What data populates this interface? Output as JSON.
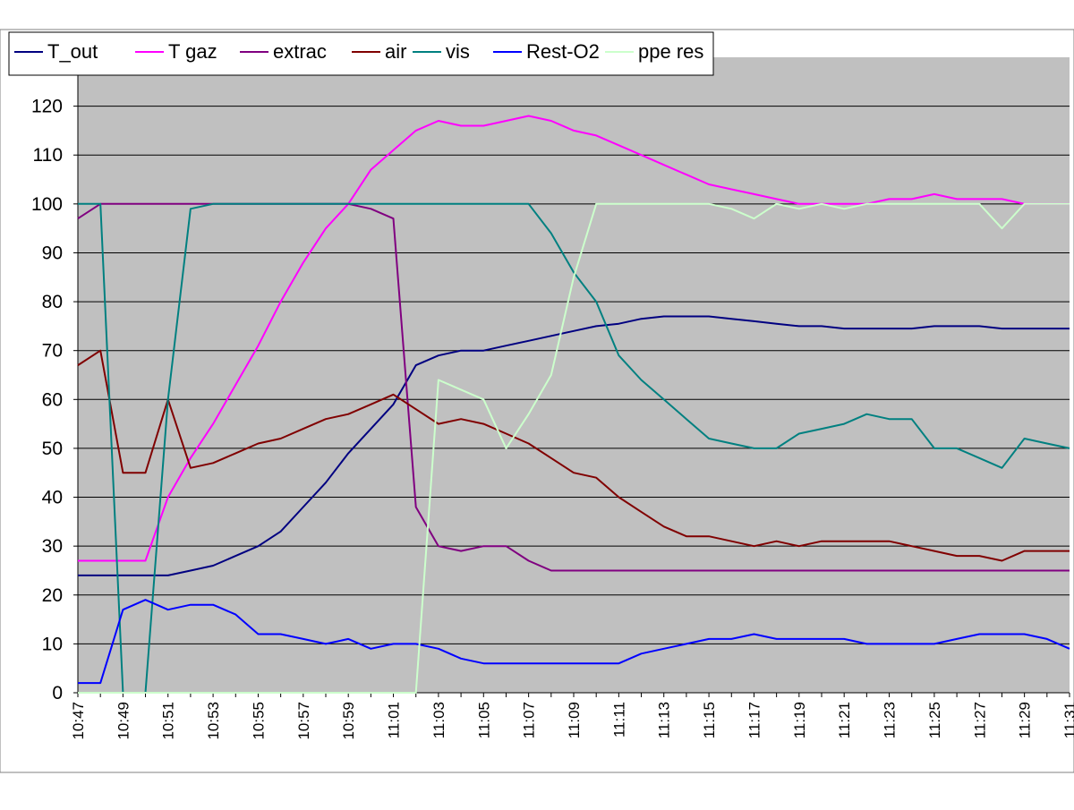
{
  "chart_data": {
    "type": "line",
    "title": "",
    "xlabel": "",
    "ylabel": "",
    "ylim": [
      0,
      130
    ],
    "y_ticks": [
      0,
      10,
      20,
      30,
      40,
      50,
      60,
      70,
      80,
      90,
      100,
      110,
      120
    ],
    "x_range_minutes": [
      "10:47",
      "11:31"
    ],
    "x_tick_labels": [
      "10:47",
      "10:49",
      "10:51",
      "10:53",
      "10:55",
      "10:57",
      "10:59",
      "11:01",
      "11:03",
      "11:05",
      "11:07",
      "11:09",
      "11:11",
      "11:13",
      "11:15",
      "11:17",
      "11:19",
      "11:21",
      "11:23",
      "11:25",
      "11:27",
      "11:29",
      "11:31"
    ],
    "grid": "horizontal",
    "plot_background": "#c0c0c0",
    "legend_position": "top-left",
    "series": [
      {
        "name": "T_out",
        "color": "#000080",
        "x": [
          "10:47",
          "10:48",
          "10:49",
          "10:50",
          "10:51",
          "10:52",
          "10:53",
          "10:54",
          "10:55",
          "10:56",
          "10:57",
          "10:58",
          "10:59",
          "11:00",
          "11:01",
          "11:02",
          "11:03",
          "11:04",
          "11:05",
          "11:06",
          "11:07",
          "11:08",
          "11:09",
          "11:10",
          "11:11",
          "11:12",
          "11:13",
          "11:14",
          "11:15",
          "11:16",
          "11:17",
          "11:18",
          "11:19",
          "11:20",
          "11:21",
          "11:22",
          "11:23",
          "11:24",
          "11:25",
          "11:26",
          "11:27",
          "11:28",
          "11:29",
          "11:30",
          "11:31"
        ],
        "y": [
          24,
          24,
          24,
          24,
          24,
          25,
          26,
          28,
          30,
          33,
          38,
          43,
          49,
          54,
          59,
          67,
          69,
          70,
          70,
          71,
          72,
          73,
          74,
          75,
          75.5,
          76.5,
          77,
          77,
          77,
          76.5,
          76,
          75.5,
          75,
          75,
          74.5,
          74.5,
          74.5,
          74.5,
          75,
          75,
          75,
          74.5,
          74.5,
          74.5,
          74.5
        ]
      },
      {
        "name": "T gaz",
        "color": "#ff00ff",
        "x": [
          "10:47",
          "10:48",
          "10:49",
          "10:50",
          "10:51",
          "10:52",
          "10:53",
          "10:54",
          "10:55",
          "10:56",
          "10:57",
          "10:58",
          "10:59",
          "11:00",
          "11:01",
          "11:02",
          "11:03",
          "11:04",
          "11:05",
          "11:06",
          "11:07",
          "11:08",
          "11:09",
          "11:10",
          "11:11",
          "11:12",
          "11:13",
          "11:14",
          "11:15",
          "11:16",
          "11:17",
          "11:18",
          "11:19",
          "11:20",
          "11:21",
          "11:22",
          "11:23",
          "11:24",
          "11:25",
          "11:26",
          "11:27",
          "11:28",
          "11:29",
          "11:30",
          "11:31"
        ],
        "y": [
          27,
          27,
          27,
          27,
          40,
          48,
          55,
          63,
          71,
          80,
          88,
          95,
          100,
          107,
          111,
          115,
          117,
          116,
          116,
          117,
          118,
          117,
          115,
          114,
          112,
          110,
          108,
          106,
          104,
          103,
          102,
          101,
          100,
          100,
          100,
          100,
          101,
          101,
          102,
          101,
          101,
          101,
          100,
          100,
          100
        ]
      },
      {
        "name": "extrac",
        "color": "#800080",
        "x": [
          "10:47",
          "10:48",
          "10:49",
          "10:50",
          "10:51",
          "10:52",
          "10:53",
          "10:54",
          "10:55",
          "10:56",
          "10:57",
          "10:58",
          "10:59",
          "11:00",
          "11:01",
          "11:02",
          "11:03",
          "11:04",
          "11:05",
          "11:06",
          "11:07",
          "11:08",
          "11:09",
          "11:10",
          "11:11",
          "11:12",
          "11:13",
          "11:14",
          "11:15",
          "11:16",
          "11:17",
          "11:18",
          "11:19",
          "11:20",
          "11:21",
          "11:22",
          "11:23",
          "11:24",
          "11:25",
          "11:26",
          "11:27",
          "11:28",
          "11:29",
          "11:30",
          "11:31"
        ],
        "y": [
          97,
          100,
          100,
          100,
          100,
          100,
          100,
          100,
          100,
          100,
          100,
          100,
          100,
          99,
          97,
          38,
          30,
          29,
          30,
          30,
          27,
          25,
          25,
          25,
          25,
          25,
          25,
          25,
          25,
          25,
          25,
          25,
          25,
          25,
          25,
          25,
          25,
          25,
          25,
          25,
          25,
          25,
          25,
          25,
          25
        ]
      },
      {
        "name": "air",
        "color": "#800000",
        "x": [
          "10:47",
          "10:48",
          "10:49",
          "10:50",
          "10:51",
          "10:52",
          "10:53",
          "10:54",
          "10:55",
          "10:56",
          "10:57",
          "10:58",
          "10:59",
          "11:00",
          "11:01",
          "11:02",
          "11:03",
          "11:04",
          "11:05",
          "11:06",
          "11:07",
          "11:08",
          "11:09",
          "11:10",
          "11:11",
          "11:12",
          "11:13",
          "11:14",
          "11:15",
          "11:16",
          "11:17",
          "11:18",
          "11:19",
          "11:20",
          "11:21",
          "11:22",
          "11:23",
          "11:24",
          "11:25",
          "11:26",
          "11:27",
          "11:28",
          "11:29",
          "11:30",
          "11:31"
        ],
        "y": [
          67,
          70,
          45,
          45,
          60,
          46,
          47,
          49,
          51,
          52,
          54,
          56,
          57,
          59,
          61,
          58,
          55,
          56,
          55,
          53,
          51,
          48,
          45,
          44,
          40,
          37,
          34,
          32,
          32,
          31,
          30,
          31,
          30,
          31,
          31,
          31,
          31,
          30,
          29,
          28,
          28,
          27,
          29,
          29,
          29
        ]
      },
      {
        "name": "vis",
        "color": "#008080",
        "x": [
          "10:47",
          "10:48",
          "10:49",
          "10:50",
          "10:51",
          "10:52",
          "10:53",
          "10:54",
          "10:55",
          "10:56",
          "10:57",
          "10:58",
          "10:59",
          "11:00",
          "11:01",
          "11:02",
          "11:03",
          "11:04",
          "11:05",
          "11:06",
          "11:07",
          "11:08",
          "11:09",
          "11:10",
          "11:11",
          "11:12",
          "11:13",
          "11:14",
          "11:15",
          "11:16",
          "11:17",
          "11:18",
          "11:19",
          "11:20",
          "11:21",
          "11:22",
          "11:23",
          "11:24",
          "11:25",
          "11:26",
          "11:27",
          "11:28",
          "11:29",
          "11:30",
          "11:31"
        ],
        "y": [
          100,
          100,
          0,
          0,
          60,
          99,
          100,
          100,
          100,
          100,
          100,
          100,
          100,
          100,
          100,
          100,
          100,
          100,
          100,
          100,
          100,
          94,
          86,
          80,
          69,
          64,
          60,
          56,
          52,
          51,
          50,
          50,
          53,
          54,
          55,
          57,
          56,
          56,
          50,
          50,
          48,
          46,
          52,
          51,
          50
        ]
      },
      {
        "name": "Rest-O2",
        "color": "#0000ff",
        "x": [
          "10:47",
          "10:48",
          "10:49",
          "10:50",
          "10:51",
          "10:52",
          "10:53",
          "10:54",
          "10:55",
          "10:56",
          "10:57",
          "10:58",
          "10:59",
          "11:00",
          "11:01",
          "11:02",
          "11:03",
          "11:04",
          "11:05",
          "11:06",
          "11:07",
          "11:08",
          "11:09",
          "11:10",
          "11:11",
          "11:12",
          "11:13",
          "11:14",
          "11:15",
          "11:16",
          "11:17",
          "11:18",
          "11:19",
          "11:20",
          "11:21",
          "11:22",
          "11:23",
          "11:24",
          "11:25",
          "11:26",
          "11:27",
          "11:28",
          "11:29",
          "11:30",
          "11:31"
        ],
        "y": [
          2,
          2,
          17,
          19,
          17,
          18,
          18,
          16,
          12,
          12,
          11,
          10,
          11,
          9,
          10,
          10,
          9,
          7,
          6,
          6,
          6,
          6,
          6,
          6,
          6,
          8,
          9,
          10,
          11,
          11,
          12,
          11,
          11,
          11,
          11,
          10,
          10,
          10,
          10,
          11,
          12,
          12,
          12,
          11,
          9
        ]
      },
      {
        "name": "ppe res",
        "color": "#ccffcc",
        "x": [
          "10:47",
          "10:48",
          "10:49",
          "10:50",
          "10:51",
          "10:52",
          "10:53",
          "10:54",
          "10:55",
          "10:56",
          "10:57",
          "10:58",
          "10:59",
          "11:00",
          "11:01",
          "11:02",
          "11:03",
          "11:04",
          "11:05",
          "11:06",
          "11:07",
          "11:08",
          "11:09",
          "11:10",
          "11:11",
          "11:12",
          "11:13",
          "11:14",
          "11:15",
          "11:16",
          "11:17",
          "11:18",
          "11:19",
          "11:20",
          "11:21",
          "11:22",
          "11:23",
          "11:24",
          "11:25",
          "11:26",
          "11:27",
          "11:28",
          "11:29",
          "11:30",
          "11:31"
        ],
        "y": [
          0,
          0,
          0,
          0,
          0,
          0,
          0,
          0,
          0,
          0,
          0,
          0,
          0,
          0,
          0,
          0,
          64,
          62,
          60,
          50,
          57,
          65,
          85,
          100,
          100,
          100,
          100,
          100,
          100,
          99,
          97,
          100,
          99,
          100,
          99,
          100,
          100,
          100,
          100,
          100,
          100,
          95,
          100,
          100,
          100
        ]
      }
    ]
  }
}
